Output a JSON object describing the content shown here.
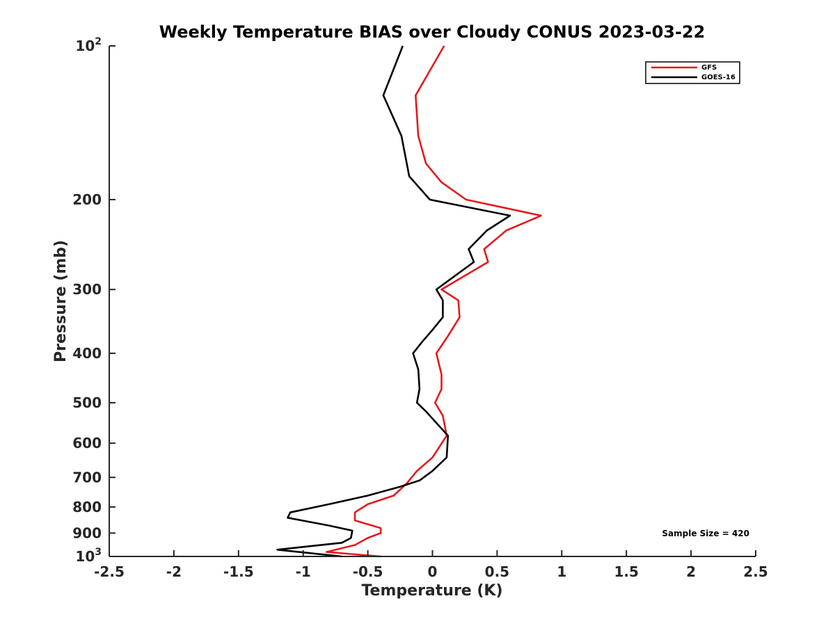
{
  "chart_data": {
    "type": "line",
    "title": "Weekly Temperature BIAS over Cloudy CONUS 2023-03-22",
    "xlabel": "Temperature (K)",
    "ylabel": "Pressure (mb)",
    "xlim": [
      -2.5,
      2.5
    ],
    "ylim": [
      1000,
      100
    ],
    "yscale": "log",
    "x_ticks": [
      "-2.5",
      "-2",
      "-1.5",
      "-1",
      "-0.5",
      "0",
      "0.5",
      "1",
      "1.5",
      "2",
      "2.5"
    ],
    "y_ticks": [
      {
        "value": 100,
        "label": "10",
        "sup": "2"
      },
      {
        "value": 200,
        "label": "200",
        "sup": ""
      },
      {
        "value": 300,
        "label": "300",
        "sup": ""
      },
      {
        "value": 400,
        "label": "400",
        "sup": ""
      },
      {
        "value": 500,
        "label": "500",
        "sup": ""
      },
      {
        "value": 600,
        "label": "600",
        "sup": ""
      },
      {
        "value": 700,
        "label": "700",
        "sup": ""
      },
      {
        "value": 800,
        "label": "800",
        "sup": ""
      },
      {
        "value": 900,
        "label": "900",
        "sup": ""
      },
      {
        "value": 1000,
        "label": "10",
        "sup": "3"
      }
    ],
    "grid": false,
    "legend_position": "top-right",
    "annotation": "Sample Size = 420",
    "series": [
      {
        "name": "GFS",
        "color": "#e41a1c",
        "points": [
          [
            0.09,
            100
          ],
          [
            -0.13,
            125
          ],
          [
            -0.11,
            150
          ],
          [
            -0.05,
            170
          ],
          [
            0.07,
            185
          ],
          [
            0.26,
            200
          ],
          [
            0.84,
            215
          ],
          [
            0.57,
            230
          ],
          [
            0.4,
            250
          ],
          [
            0.43,
            265
          ],
          [
            0.07,
            300
          ],
          [
            0.2,
            315
          ],
          [
            0.21,
            340
          ],
          [
            0.12,
            370
          ],
          [
            0.03,
            400
          ],
          [
            0.07,
            440
          ],
          [
            0.07,
            470
          ],
          [
            0.02,
            500
          ],
          [
            0.08,
            530
          ],
          [
            0.11,
            580
          ],
          [
            0.0,
            640
          ],
          [
            -0.12,
            680
          ],
          [
            -0.2,
            720
          ],
          [
            -0.3,
            760
          ],
          [
            -0.5,
            790
          ],
          [
            -0.6,
            820
          ],
          [
            -0.6,
            850
          ],
          [
            -0.5,
            865
          ],
          [
            -0.4,
            880
          ],
          [
            -0.4,
            900
          ],
          [
            -0.5,
            920
          ],
          [
            -0.6,
            950
          ],
          [
            -0.82,
            980
          ],
          [
            -0.4,
            1000
          ]
        ]
      },
      {
        "name": "GOES-16",
        "color": "#000000",
        "points": [
          [
            -0.23,
            100
          ],
          [
            -0.38,
            125
          ],
          [
            -0.24,
            150
          ],
          [
            -0.18,
            180
          ],
          [
            -0.02,
            200
          ],
          [
            0.6,
            215
          ],
          [
            0.42,
            230
          ],
          [
            0.28,
            250
          ],
          [
            0.32,
            265
          ],
          [
            0.03,
            300
          ],
          [
            0.08,
            315
          ],
          [
            0.08,
            340
          ],
          [
            0.0,
            360
          ],
          [
            -0.08,
            380
          ],
          [
            -0.15,
            400
          ],
          [
            -0.11,
            430
          ],
          [
            -0.1,
            470
          ],
          [
            -0.12,
            500
          ],
          [
            -0.05,
            520
          ],
          [
            0.12,
            580
          ],
          [
            0.11,
            640
          ],
          [
            0.0,
            680
          ],
          [
            -0.1,
            710
          ],
          [
            -0.25,
            730
          ],
          [
            -0.5,
            760
          ],
          [
            -0.8,
            790
          ],
          [
            -1.1,
            820
          ],
          [
            -1.12,
            840
          ],
          [
            -0.8,
            870
          ],
          [
            -0.62,
            890
          ],
          [
            -0.63,
            920
          ],
          [
            -0.7,
            940
          ],
          [
            -1.2,
            970
          ],
          [
            -0.95,
            985
          ],
          [
            -0.7,
            1000
          ]
        ]
      }
    ]
  }
}
